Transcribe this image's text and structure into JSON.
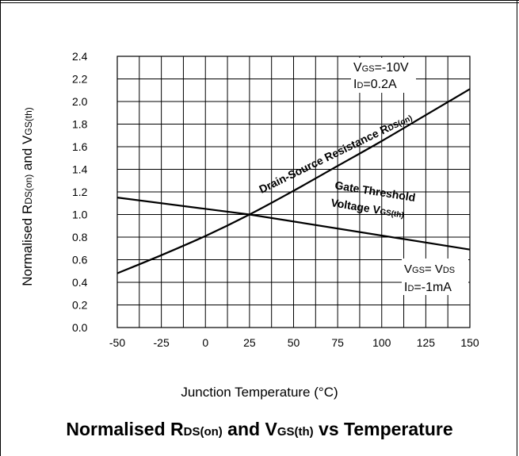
{
  "chart_data": {
    "type": "line",
    "title": {
      "main_1": "Normalised R",
      "sub_1": "DS(on)",
      "main_2": " and V",
      "sub_2": "GS(th)",
      "main_3": " vs Temperature"
    },
    "xlabel": "Junction Temperature (°C)",
    "ylabel": {
      "main_1": "Normalised R",
      "sub_1": "DS(on)",
      "main_2": " and V",
      "sub_2": "GS(th)"
    },
    "xlim": [
      -50,
      150
    ],
    "ylim": [
      0.0,
      2.4
    ],
    "x_ticks": [
      -50,
      -25,
      0,
      25,
      50,
      75,
      100,
      125,
      150
    ],
    "y_ticks": [
      "0.0",
      "0.2",
      "0.4",
      "0.6",
      "0.8",
      "1.0",
      "1.2",
      "1.4",
      "1.6",
      "1.8",
      "2.0",
      "2.2",
      "2.4"
    ],
    "grid": true,
    "series": [
      {
        "name": "Drain-Source Resistance RDS(on)",
        "x": [
          -50,
          -25,
          0,
          25,
          50,
          75,
          100,
          125,
          150
        ],
        "y": [
          0.48,
          0.64,
          0.81,
          1.0,
          1.21,
          1.43,
          1.65,
          1.88,
          2.11
        ]
      },
      {
        "name": "Gate Threshold Voltage VGS(th)",
        "x": [
          -50,
          25,
          150
        ],
        "y": [
          1.15,
          1.0,
          0.69
        ]
      }
    ],
    "annotations": {
      "rds_label": {
        "main": "Drain-Source Resistance R",
        "sub": "DS(on)"
      },
      "vgs_label_1": "Gate Threshold",
      "vgs_label_2": {
        "main": "Voltage V",
        "sub": "GS(th)"
      },
      "cond_top_1": {
        "v": "V",
        "sub": "GS",
        "rest": "=-10V"
      },
      "cond_top_2": {
        "i": "I",
        "sub": "D",
        "rest": "=0.2A"
      },
      "cond_bot_1": {
        "v": "V",
        "sub": "GS",
        "eq": "= V",
        "sub2": "DS"
      },
      "cond_bot_2": {
        "i": "I",
        "sub": "D",
        "rest": "=-1mA"
      }
    },
    "colors": {
      "lines": "#000000",
      "grid": "#000000"
    }
  }
}
